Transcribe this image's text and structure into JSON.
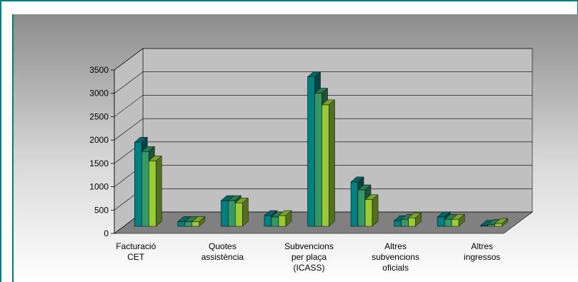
{
  "chart_data": {
    "type": "bar3d",
    "categories": [
      "Facturació\nCET",
      null,
      "Quotes\nassistència",
      null,
      "Subvencions\nper plaça\n(ICASS)",
      null,
      "Altres\nsubvencions\noficials",
      null,
      "Altres\ningressos"
    ],
    "series": [
      {
        "color": "#008080",
        "values": [
          1800,
          100,
          550,
          230,
          3200,
          950,
          120,
          200,
          20
        ]
      },
      {
        "color": "#339966",
        "values": [
          1600,
          100,
          550,
          200,
          2850,
          780,
          150,
          150,
          40
        ]
      },
      {
        "color": "#99cc33",
        "values": [
          1400,
          100,
          500,
          230,
          2600,
          570,
          180,
          150,
          60
        ]
      }
    ],
    "ylim": [
      0,
      3500
    ],
    "yticks": [
      0,
      500,
      1000,
      1500,
      2000,
      2500,
      3000,
      3500
    ],
    "grid": true
  }
}
